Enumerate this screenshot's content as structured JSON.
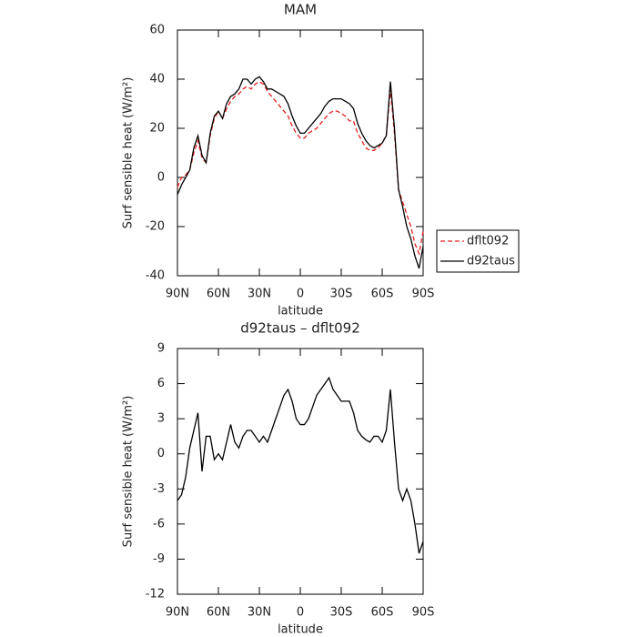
{
  "chart_data": [
    {
      "type": "line",
      "title": "MAM",
      "xlabel": "latitude",
      "ylabel": "Surf sensible heat (W/m²)",
      "x": [
        90,
        87,
        84,
        81,
        78,
        75,
        72,
        69,
        66,
        63,
        60,
        57,
        54,
        51,
        48,
        45,
        42,
        39,
        36,
        33,
        30,
        27,
        24,
        21,
        18,
        15,
        12,
        9,
        6,
        3,
        0,
        -3,
        -6,
        -9,
        -12,
        -15,
        -18,
        -21,
        -24,
        -27,
        -30,
        -33,
        -36,
        -39,
        -42,
        -45,
        -48,
        -51,
        -54,
        -57,
        -60,
        -63,
        -66,
        -69,
        -72,
        -75,
        -78,
        -81,
        -84,
        -87,
        -90
      ],
      "series": [
        {
          "name": "dflt092",
          "color": "#e8201e",
          "line_style": "dashed",
          "values": [
            -4,
            0,
            1,
            3,
            10,
            15,
            8,
            6,
            17,
            24,
            27,
            24,
            28,
            31,
            33,
            34,
            36,
            37,
            36,
            38,
            39,
            38,
            35,
            33,
            31,
            29,
            27,
            25,
            21,
            18,
            16,
            16,
            18,
            19,
            20,
            22,
            24,
            26,
            27,
            27,
            26,
            25,
            23,
            23,
            18,
            15,
            12,
            11,
            11,
            12,
            14,
            17,
            36,
            18,
            -5,
            -10,
            -15,
            -20,
            -27,
            -31,
            -22
          ]
        },
        {
          "name": "d92taus",
          "color": "#000000",
          "line_style": "solid",
          "values": [
            -7,
            -3,
            0,
            3,
            12,
            17,
            9,
            6,
            18,
            25,
            27,
            24,
            30,
            33,
            34,
            36,
            40,
            40,
            38,
            40,
            41,
            39,
            36,
            36,
            35,
            34,
            33,
            30,
            25,
            21,
            18,
            18,
            20,
            22,
            24,
            26,
            29,
            31,
            32,
            32,
            32,
            31,
            30,
            28,
            22,
            18,
            15,
            13,
            12,
            13,
            14,
            17,
            39,
            20,
            -5,
            -12,
            -20,
            -25,
            -32,
            -37,
            -28
          ]
        }
      ],
      "xlim": [
        90,
        -90
      ],
      "xticks": [
        {
          "value": 90,
          "label": "90N"
        },
        {
          "value": 60,
          "label": "60N"
        },
        {
          "value": 30,
          "label": "30N"
        },
        0,
        {
          "value": -30,
          "label": "30S"
        },
        {
          "value": -60,
          "label": "60S"
        },
        {
          "value": -90,
          "label": "90S"
        }
      ],
      "ylim": [
        -40,
        60
      ],
      "yticks": [
        -40,
        -20,
        0,
        20,
        40,
        60
      ],
      "legend": "right"
    },
    {
      "type": "line",
      "title": "d92taus – dflt092",
      "xlabel": "latitude",
      "ylabel": "Surf sensible heat (W/m²)",
      "x": [
        90,
        87,
        84,
        81,
        78,
        75,
        72,
        69,
        66,
        63,
        60,
        57,
        54,
        51,
        48,
        45,
        42,
        39,
        36,
        33,
        30,
        27,
        24,
        21,
        18,
        15,
        12,
        9,
        6,
        3,
        0,
        -3,
        -6,
        -9,
        -12,
        -15,
        -18,
        -21,
        -24,
        -27,
        -30,
        -33,
        -36,
        -39,
        -42,
        -45,
        -48,
        -51,
        -54,
        -57,
        -60,
        -63,
        -66,
        -69,
        -72,
        -75,
        -78,
        -81,
        -84,
        -87,
        -90
      ],
      "color": "#000000",
      "values": [
        -4,
        -3.5,
        -2,
        0.5,
        2,
        3.5,
        -1.5,
        1.5,
        1.5,
        -0.5,
        0,
        -0.5,
        1,
        2.5,
        1,
        0.5,
        1.5,
        2,
        2,
        1.5,
        1,
        1.5,
        1,
        2,
        3,
        4,
        5,
        5.5,
        4.5,
        3,
        2.5,
        2.5,
        3,
        4,
        5,
        5.5,
        6,
        6.5,
        5.5,
        5,
        4.5,
        4.5,
        4.5,
        3.5,
        2,
        1.5,
        1.2,
        1,
        1.5,
        1.5,
        1,
        2,
        5.5,
        1,
        -3,
        -4,
        -3,
        -4,
        -6,
        -8.5,
        -7.5
      ],
      "xlim": [
        90,
        -90
      ],
      "xticks": [
        {
          "value": 90,
          "label": "90N"
        },
        {
          "value": 60,
          "label": "60N"
        },
        {
          "value": 30,
          "label": "30N"
        },
        0,
        {
          "value": -30,
          "label": "30S"
        },
        {
          "value": -60,
          "label": "60S"
        },
        {
          "value": -90,
          "label": "90S"
        }
      ],
      "ylim": [
        -12,
        9
      ],
      "yticks": [
        -12,
        -9,
        -6,
        -3,
        0,
        3,
        6,
        9
      ]
    }
  ]
}
